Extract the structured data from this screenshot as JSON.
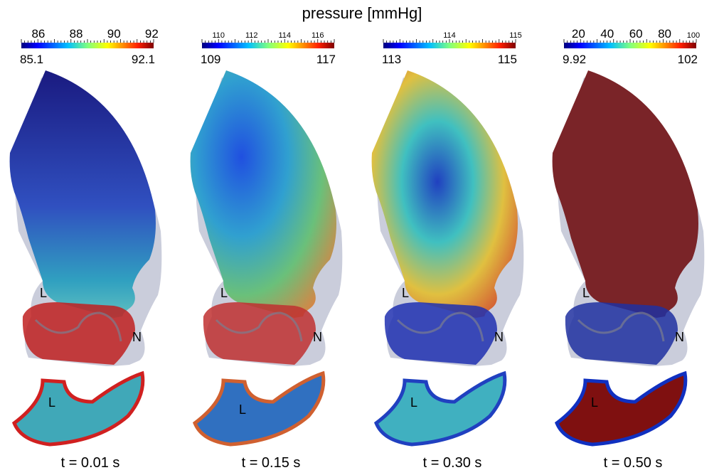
{
  "title": "pressure [mmHg]",
  "panels": [
    {
      "id": "p1",
      "min": "85.1",
      "max": "92.1",
      "ticks": [
        "86",
        "88",
        "90",
        "92"
      ],
      "time": "t = 0.01 s"
    },
    {
      "id": "p2",
      "min": "109",
      "max": "117",
      "ticks": [
        "110",
        "112",
        "114",
        "116"
      ],
      "time": "t = 0.15 s"
    },
    {
      "id": "p3",
      "min": "113",
      "max": "115",
      "ticks": [
        "114",
        "115"
      ],
      "time": "t = 0.30 s"
    },
    {
      "id": "p4",
      "min": "9.92",
      "max": "102",
      "ticks": [
        "20",
        "40",
        "60",
        "80",
        "100"
      ],
      "time": "t = 0.50 s"
    }
  ],
  "labels": {
    "L": "L",
    "N": "N"
  },
  "colormap": [
    "#00007f",
    "#0000ff",
    "#007fff",
    "#00ffff",
    "#7fff7f",
    "#ffff00",
    "#ff7f00",
    "#ff0000",
    "#7f0000"
  ]
}
